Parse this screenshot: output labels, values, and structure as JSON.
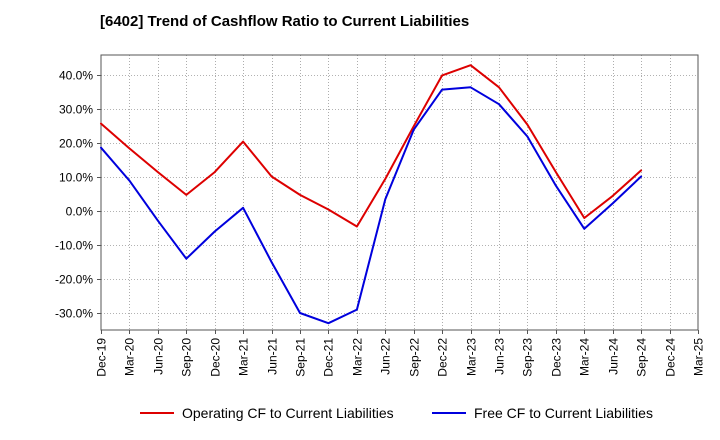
{
  "chart_data": {
    "type": "line",
    "title": "[6402]  Trend of Cashflow Ratio to Current Liabilities",
    "xlabel": "",
    "ylabel": "",
    "categories": [
      "Dec-19",
      "Mar-20",
      "Jun-20",
      "Sep-20",
      "Dec-20",
      "Mar-21",
      "Jun-21",
      "Sep-21",
      "Dec-21",
      "Mar-22",
      "Jun-22",
      "Sep-22",
      "Dec-22",
      "Mar-23",
      "Jun-23",
      "Sep-23",
      "Dec-23",
      "Mar-24",
      "Jun-24",
      "Sep-24",
      "Dec-24",
      "Mar-25"
    ],
    "ylim": [
      -35,
      46
    ],
    "yticks": [
      -30,
      -20,
      -10,
      0,
      10,
      20,
      30,
      40
    ],
    "ytick_labels": [
      "-30.0%",
      "-20.0%",
      "-10.0%",
      "0.0%",
      "10.0%",
      "20.0%",
      "30.0%",
      "40.0%"
    ],
    "grid": true,
    "legend_position": "bottom",
    "series": [
      {
        "name": "Operating CF to Current Liabilities",
        "color": "#dd0000",
        "values": [
          25.8,
          18.5,
          11.5,
          4.8,
          11.5,
          20.5,
          10.2,
          4.8,
          0.5,
          -4.5,
          9.5,
          25.0,
          40.0,
          43.0,
          36.5,
          25.5,
          11.5,
          -2.0,
          4.5,
          12.0,
          null,
          null
        ]
      },
      {
        "name": "Free CF to Current Liabilities",
        "color": "#0000dd",
        "values": [
          18.7,
          9.0,
          -2.8,
          -14.0,
          -6.0,
          1.0,
          -15.0,
          -30.0,
          -33.0,
          -29.0,
          3.5,
          24.0,
          35.8,
          36.5,
          31.5,
          22.0,
          7.5,
          -5.2,
          2.3,
          10.2,
          null,
          null
        ]
      }
    ]
  }
}
